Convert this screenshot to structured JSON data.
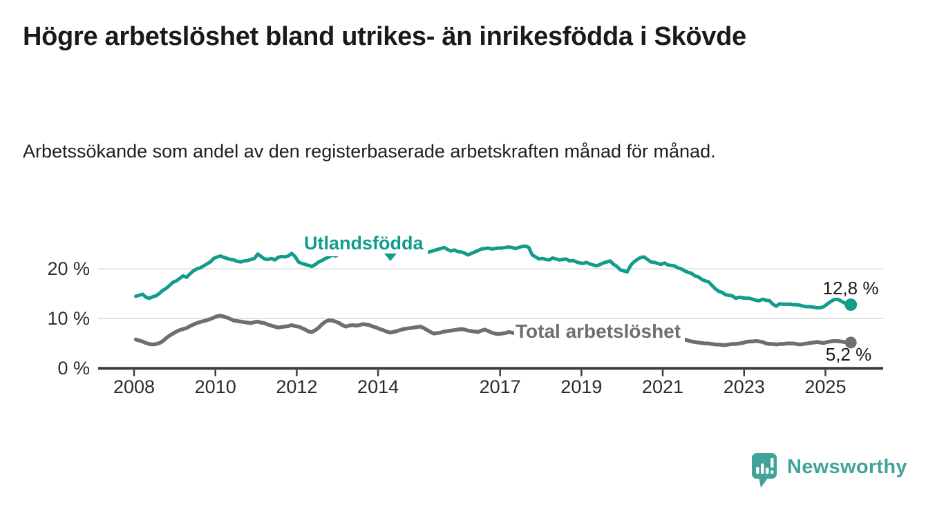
{
  "header": {
    "title": "Högre arbetslöshet bland utrikes- än inrikesfödda i Skövde",
    "subtitle": "Arbetssökande som andel av den registerbaserade arbetskraften månad för månad."
  },
  "colors": {
    "utlandsfodda": "#129c8c",
    "total": "#6f6f6f",
    "axis": "#3c3c3c",
    "grid": "#d9d9d9",
    "brand": "#42a39a"
  },
  "chart_data": {
    "type": "line",
    "title": "Högre arbetslöshet bland utrikes- än inrikesfödda i Skövde",
    "subtitle": "Arbetssökande som andel av den registerbaserade arbetskraften månad för månad.",
    "x_unit": "month",
    "x_start_year": 2008,
    "x_end": "2025-08",
    "x_ticks": [
      "2008",
      "2010",
      "2012",
      "2014",
      "2017",
      "2019",
      "2021",
      "2023",
      "2025"
    ],
    "y_ticks": [
      "0 %",
      "10 %",
      "20 %"
    ],
    "ylim": [
      0,
      27
    ],
    "grid": "horizontal",
    "legend_position": "inline-labels",
    "series": [
      {
        "name": "Utlandsfödda",
        "color": "#129c8c",
        "end_label": "12,8 %",
        "end_value": 12.8,
        "values": [
          14.5,
          14.7,
          14.9,
          14.3,
          14.1,
          14.4,
          14.6,
          15.1,
          15.7,
          16.1,
          16.7,
          17.3,
          17.6,
          18.1,
          18.6,
          18.3,
          19.0,
          19.6,
          20.0,
          20.2,
          20.6,
          21.0,
          21.4,
          22.1,
          22.4,
          22.6,
          22.3,
          22.1,
          21.9,
          21.8,
          21.5,
          21.4,
          21.6,
          21.7,
          21.9,
          22.1,
          23.0,
          22.5,
          22.0,
          21.9,
          22.1,
          21.8,
          22.3,
          22.5,
          22.4,
          22.6,
          23.1,
          22.5,
          21.4,
          21.1,
          20.9,
          20.7,
          20.5,
          20.9,
          21.4,
          21.7,
          22.1,
          22.4,
          22.8,
          22.6,
          23.1,
          23.2,
          23.3,
          23.2,
          23.1,
          23.3,
          23.5,
          23.4,
          23.2,
          23.3,
          23.4,
          23.2,
          23.3,
          23.1,
          23.0,
          23.2,
          23.4,
          23.3,
          23.5,
          23.6,
          23.4,
          23.5,
          23.7,
          23.5,
          23.6,
          23.4,
          23.3,
          23.5,
          23.7,
          23.9,
          24.1,
          24.3,
          23.9,
          23.6,
          23.8,
          23.5,
          23.4,
          23.2,
          22.8,
          23.1,
          23.4,
          23.7,
          24.0,
          24.1,
          24.2,
          24.0,
          24.1,
          24.2,
          24.2,
          24.3,
          24.4,
          24.3,
          24.1,
          24.3,
          24.5,
          24.6,
          24.3,
          22.8,
          22.4,
          22.0,
          22.1,
          21.9,
          21.8,
          22.2,
          22.0,
          21.8,
          21.9,
          22.0,
          21.6,
          21.7,
          21.4,
          21.2,
          21.1,
          21.3,
          21.0,
          20.8,
          20.6,
          20.9,
          21.2,
          21.4,
          21.6,
          20.9,
          20.5,
          19.8,
          19.6,
          19.4,
          20.7,
          21.4,
          21.9,
          22.3,
          22.4,
          21.9,
          21.4,
          21.3,
          21.1,
          20.9,
          21.2,
          20.8,
          20.7,
          20.6,
          20.2,
          20.0,
          19.6,
          19.3,
          19.1,
          18.6,
          18.4,
          17.9,
          17.6,
          17.4,
          16.7,
          16.0,
          15.5,
          15.3,
          14.8,
          14.7,
          14.6,
          14.1,
          14.3,
          14.2,
          14.1,
          14.1,
          13.9,
          13.7,
          13.6,
          13.9,
          13.7,
          13.6,
          12.9,
          12.5,
          13.0,
          12.9,
          12.9,
          12.9,
          12.8,
          12.8,
          12.7,
          12.5,
          12.4,
          12.4,
          12.3,
          12.2,
          12.2,
          12.4,
          12.9,
          13.4,
          13.8,
          13.9,
          13.6,
          13.2,
          13.0,
          12.8
        ]
      },
      {
        "name": "Total arbetslöshet",
        "color": "#6f6f6f",
        "end_label": "5,2 %",
        "end_value": 5.2,
        "values": [
          5.8,
          5.6,
          5.4,
          5.1,
          4.9,
          4.8,
          4.9,
          5.1,
          5.5,
          6.1,
          6.6,
          7.0,
          7.4,
          7.7,
          7.9,
          8.1,
          8.5,
          8.8,
          9.1,
          9.3,
          9.5,
          9.7,
          9.9,
          10.2,
          10.5,
          10.6,
          10.4,
          10.2,
          9.9,
          9.6,
          9.5,
          9.4,
          9.3,
          9.2,
          9.1,
          9.3,
          9.4,
          9.2,
          9.1,
          8.8,
          8.6,
          8.4,
          8.2,
          8.3,
          8.4,
          8.5,
          8.7,
          8.5,
          8.4,
          8.1,
          7.8,
          7.4,
          7.3,
          7.7,
          8.2,
          8.9,
          9.4,
          9.7,
          9.6,
          9.4,
          9.1,
          8.7,
          8.4,
          8.6,
          8.7,
          8.6,
          8.7,
          8.9,
          8.8,
          8.7,
          8.4,
          8.2,
          7.9,
          7.7,
          7.4,
          7.2,
          7.3,
          7.5,
          7.7,
          7.9,
          8.0,
          8.1,
          8.2,
          8.3,
          8.4,
          8.1,
          7.7,
          7.3,
          7.0,
          7.1,
          7.2,
          7.4,
          7.5,
          7.6,
          7.7,
          7.8,
          7.9,
          7.8,
          7.6,
          7.5,
          7.4,
          7.3,
          7.6,
          7.8,
          7.5,
          7.2,
          7.0,
          6.9,
          7.0,
          7.1,
          7.3,
          7.2,
          7.0,
          6.9,
          6.8,
          6.8,
          6.7,
          6.6,
          6.5,
          6.4,
          6.3,
          6.2,
          6.1,
          6.0,
          5.9,
          5.8,
          5.9,
          6.0,
          5.9,
          5.8,
          5.7,
          5.6,
          5.6,
          5.5,
          5.5,
          5.4,
          5.4,
          5.5,
          5.6,
          5.7,
          5.6,
          5.6,
          5.7,
          5.9,
          6.2,
          6.4,
          7.1,
          7.8,
          8.1,
          8.3,
          8.2,
          8.0,
          7.8,
          7.6,
          7.4,
          7.2,
          7.0,
          6.8,
          6.6,
          6.4,
          6.2,
          6.0,
          5.8,
          5.6,
          5.4,
          5.3,
          5.2,
          5.1,
          5.0,
          5.0,
          4.9,
          4.8,
          4.8,
          4.7,
          4.7,
          4.8,
          4.9,
          4.9,
          5.0,
          5.1,
          5.3,
          5.4,
          5.4,
          5.5,
          5.4,
          5.3,
          5.0,
          4.9,
          4.9,
          4.8,
          4.9,
          4.9,
          5.0,
          5.0,
          5.0,
          4.9,
          4.8,
          4.9,
          5.0,
          5.1,
          5.2,
          5.3,
          5.2,
          5.1,
          5.3,
          5.4,
          5.5,
          5.5,
          5.4,
          5.3,
          5.2,
          5.2
        ]
      }
    ]
  },
  "footer": {
    "brand": "Newsworthy"
  }
}
